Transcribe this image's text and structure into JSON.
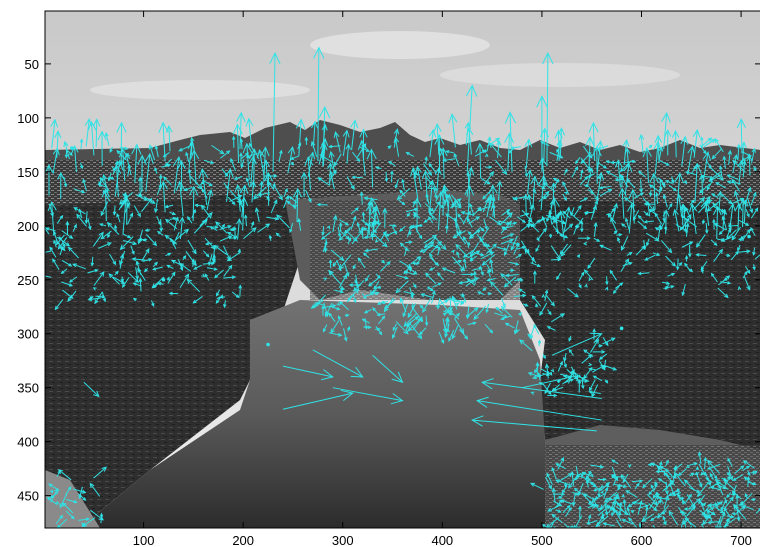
{
  "chart_data": {
    "type": "scatter",
    "title": "",
    "xlabel": "",
    "ylabel": "",
    "xlim": [
      1,
      720
    ],
    "ylim": [
      480,
      1
    ],
    "y_reversed": true,
    "grid": false,
    "xticks": [
      100,
      200,
      300,
      400,
      500,
      600,
      700
    ],
    "yticks": [
      50,
      100,
      150,
      200,
      250,
      300,
      350,
      400,
      450
    ],
    "xtick_labels": [
      "100",
      "200",
      "300",
      "400",
      "500",
      "600",
      "700"
    ],
    "ytick_labels": [
      "50",
      "100",
      "150",
      "200",
      "250",
      "300",
      "350",
      "400",
      "450"
    ],
    "image": "grayscale canyon with sky, river and rocky cliffs",
    "arrow_color": "#2fe3e6",
    "series": [
      {
        "values": [
          [
            40,
            345,
            55,
            358
          ],
          [
            240,
            370,
            310,
            355
          ],
          [
            290,
            350,
            360,
            362
          ],
          [
            240,
            330,
            290,
            340
          ],
          [
            270,
            315,
            320,
            340
          ],
          [
            560,
            360,
            440,
            345
          ],
          [
            560,
            380,
            435,
            362
          ],
          [
            555,
            390,
            430,
            380
          ],
          [
            510,
            320,
            560,
            300
          ],
          [
            480,
            350,
            530,
            340
          ],
          [
            330,
            320,
            360,
            345
          ],
          [
            230,
            150,
            232,
            40
          ],
          [
            275,
            140,
            276,
            35
          ],
          [
            505,
            145,
            506,
            40
          ],
          [
            500,
            150,
            500,
            80
          ],
          [
            280,
            145,
            282,
            90
          ],
          [
            470,
            150,
            468,
            95
          ],
          [
            425,
            150,
            430,
            70
          ]
        ]
      }
    ]
  }
}
